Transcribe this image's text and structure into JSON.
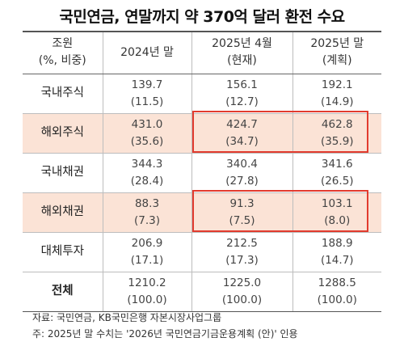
{
  "title": "국민연금, 연말까지 약 370억 달러 환전 수요",
  "table": {
    "header": {
      "col0_line1": "조원",
      "col0_line2": "(%, 비중)",
      "col1_line1": "2024년 말",
      "col2_line1": "2025년 4월",
      "col2_line2": "(현재)",
      "col3_line1": "2025년 말",
      "col3_line2": "(계획)"
    },
    "rows": [
      {
        "label": "국내주식",
        "c1": "139.7",
        "c1p": "(11.5)",
        "c2": "156.1",
        "c2p": "(12.7)",
        "c3": "192.1",
        "c3p": "(14.9)"
      },
      {
        "label": "해외주식",
        "c1": "431.0",
        "c1p": "(35.6)",
        "c2": "424.7",
        "c2p": "(34.7)",
        "c3": "462.8",
        "c3p": "(35.9)"
      },
      {
        "label": "국내채권",
        "c1": "344.3",
        "c1p": "(28.4)",
        "c2": "340.4",
        "c2p": "(27.8)",
        "c3": "341.6",
        "c3p": "(26.5)"
      },
      {
        "label": "해외채권",
        "c1": "88.3",
        "c1p": "(7.3)",
        "c2": "91.3",
        "c2p": "(7.5)",
        "c3": "103.1",
        "c3p": "(8.0)"
      },
      {
        "label": "대체투자",
        "c1": "206.9",
        "c1p": "(17.1)",
        "c2": "212.5",
        "c2p": "(17.3)",
        "c3": "188.9",
        "c3p": "(14.7)"
      },
      {
        "label": "전체",
        "c1": "1210.2",
        "c1p": "(100.0)",
        "c2": "1225.0",
        "c2p": "(100.0)",
        "c3": "1288.5",
        "c3p": "(100.0)"
      }
    ]
  },
  "notes": {
    "source": "자료: 국민연금, KB국민은행 자본시장사업그룹",
    "note": "주: 2025년 말 수치는 '2026년 국민연금기금운용계획 (안)' 인용"
  },
  "colors": {
    "highlight_fill": "#fbe3d6",
    "highlight_border": "#e23b2e"
  }
}
